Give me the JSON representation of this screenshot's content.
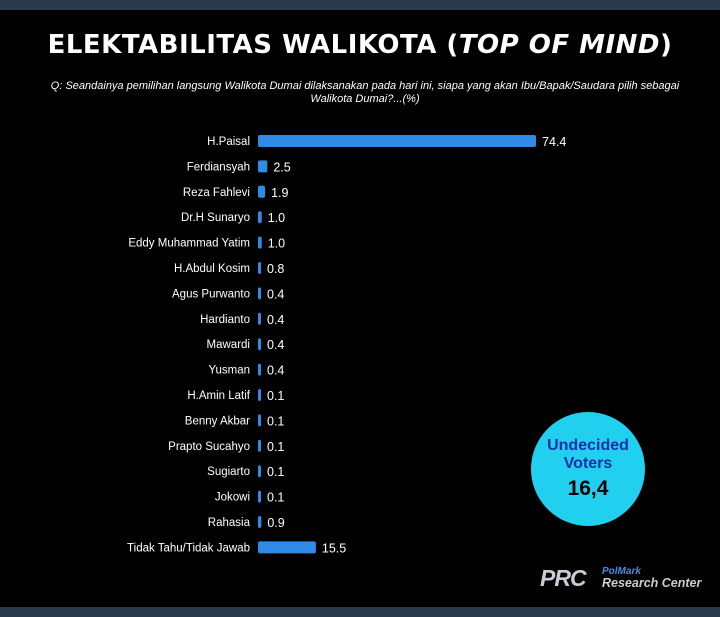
{
  "title": {
    "part1": "ELEKTABILITAS ",
    "part2": "WALIKOTA",
    "part3": " (",
    "part4": "TOP OF MIND",
    "part5": ")"
  },
  "question": "Q:  Seandainya pemilihan langsung Walikota Dumai dilaksanakan pada hari ini, siapa yang akan Ibu/Bapak/Saudara  pilih sebagai Walikota Dumai?...(%)",
  "chart_data": {
    "type": "bar",
    "orientation": "horizontal",
    "categories": [
      "H.Paisal",
      "Ferdiansyah",
      "Reza Fahlevi",
      "Dr.H Sunaryo",
      "Eddy Muhammad Yatim",
      "H.Abdul Kosim",
      "Agus Purwanto",
      "Hardianto",
      "Mawardi",
      "Yusman",
      "H.Amin Latif",
      "Benny Akbar",
      "Prapto Sucahyo",
      "Sugiarto",
      "Jokowi",
      "Rahasia",
      "Tidak Tahu/Tidak Jawab"
    ],
    "values": [
      74.4,
      2.5,
      1.9,
      1.0,
      1.0,
      0.8,
      0.4,
      0.4,
      0.4,
      0.4,
      0.1,
      0.1,
      0.1,
      0.1,
      0.1,
      0.9,
      15.5
    ],
    "value_labels": [
      "74.4",
      "2.5",
      "1.9",
      "1.0",
      "1.0",
      "0.8",
      "0.4",
      "0.4",
      "0.4",
      "0.4",
      "0.1",
      "0.1",
      "0.1",
      "0.1",
      "0.1",
      "0.9",
      "15.5"
    ],
    "bar_color": "#2f8be6",
    "grid": false,
    "legend": "none"
  },
  "badge": {
    "text": "Undecided Voters",
    "value": "16,4",
    "color": "#21d0ef"
  },
  "logo": {
    "mark": "PRC",
    "line1": "PolMark",
    "line2": "Research Center"
  }
}
